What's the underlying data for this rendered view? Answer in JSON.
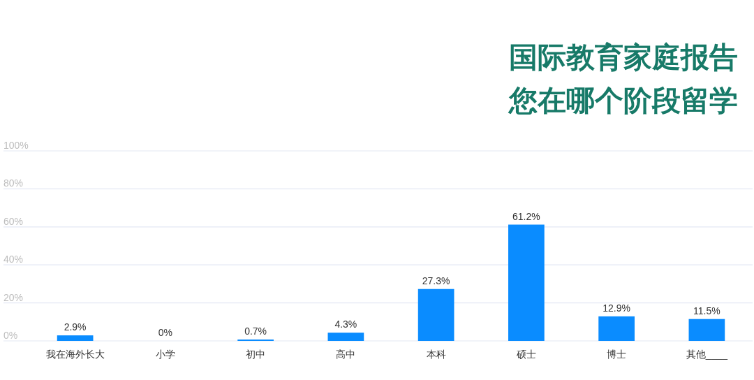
{
  "chart_data": {
    "type": "bar",
    "title": "国际教育家庭报告",
    "subtitle": "您在哪个阶段留学",
    "categories": [
      "我在海外长大",
      "小学",
      "初中",
      "高中",
      "本科",
      "硕士",
      "博士",
      "其他____"
    ],
    "values": [
      2.9,
      0,
      0.7,
      4.3,
      27.3,
      61.2,
      12.9,
      11.5
    ],
    "color": "#0a8cff",
    "value_labels": [
      "2.9%",
      "0%",
      "0.7%",
      "4.3%",
      "27.3%",
      "61.2%",
      "12.9%",
      "11.5%"
    ],
    "ylim": [
      0,
      100
    ],
    "yticks": [
      {
        "value": 0,
        "label": "0%"
      },
      {
        "value": 20,
        "label": "20%"
      },
      {
        "value": 40,
        "label": "40%"
      },
      {
        "value": 60,
        "label": "60%"
      },
      {
        "value": 80,
        "label": "80%"
      },
      {
        "value": 100,
        "label": "100%"
      }
    ],
    "grid": "y"
  }
}
